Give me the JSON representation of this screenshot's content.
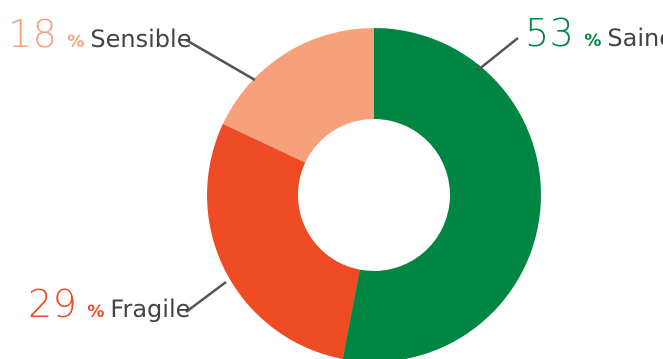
{
  "chart_data": {
    "type": "pie",
    "donut": true,
    "title": "",
    "categories": [
      "Saine",
      "Fragile",
      "Sensible"
    ],
    "values": [
      53,
      29,
      18
    ],
    "unit": "%",
    "colors": [
      "#008542",
      "#ee4a24",
      "#f6a17c"
    ],
    "legend": "none",
    "slices": [
      {
        "name": "Saine",
        "value": "53",
        "unit": "%",
        "color": "#008542"
      },
      {
        "name": "Fragile",
        "value": "29",
        "unit": "%",
        "color": "#ee4a24"
      },
      {
        "name": "Sensible",
        "value": "18",
        "unit": "%",
        "color": "#f6a17c"
      }
    ]
  }
}
